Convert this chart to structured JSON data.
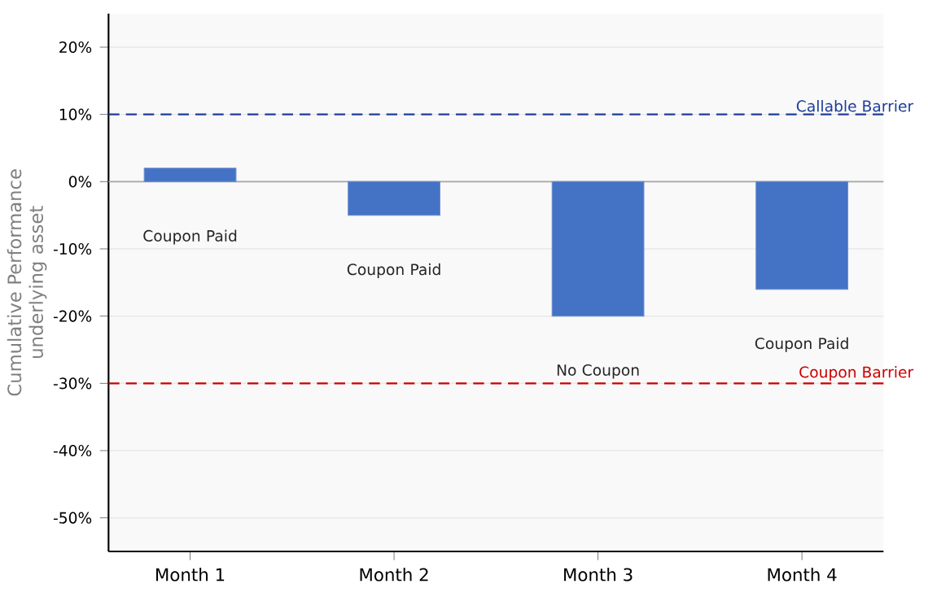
{
  "chart_data": {
    "type": "bar",
    "ylabel": "Cumulative Performance underlying asset",
    "categories": [
      "Month 1",
      "Month 2",
      "Month 3",
      "Month 4"
    ],
    "values": [
      2,
      -5,
      -20,
      -16
    ],
    "color": "#4472c4",
    "ylim": [
      -55,
      25
    ],
    "yticks": [
      {
        "value": -50,
        "label": "-50%"
      },
      {
        "value": -40,
        "label": "-40%"
      },
      {
        "value": -30,
        "label": "-30%"
      },
      {
        "value": -20,
        "label": "-20%"
      },
      {
        "value": -10,
        "label": "-10%"
      },
      {
        "value": 0,
        "label": "0%"
      },
      {
        "value": 10,
        "label": "10%"
      },
      {
        "value": 20,
        "label": "20%"
      }
    ],
    "grid": "y",
    "ref_lines": [
      {
        "axis": "y",
        "value": 10,
        "label": "Callable Barrier",
        "color": "#1f3d99",
        "line_style": "dashed"
      },
      {
        "axis": "y",
        "value": -30,
        "label": "Coupon Barrier",
        "color": "#cc0000",
        "line_style": "dashed"
      }
    ],
    "annotations": [
      "Coupon Paid",
      "Coupon Paid",
      "No Coupon",
      "Coupon Paid"
    ]
  }
}
